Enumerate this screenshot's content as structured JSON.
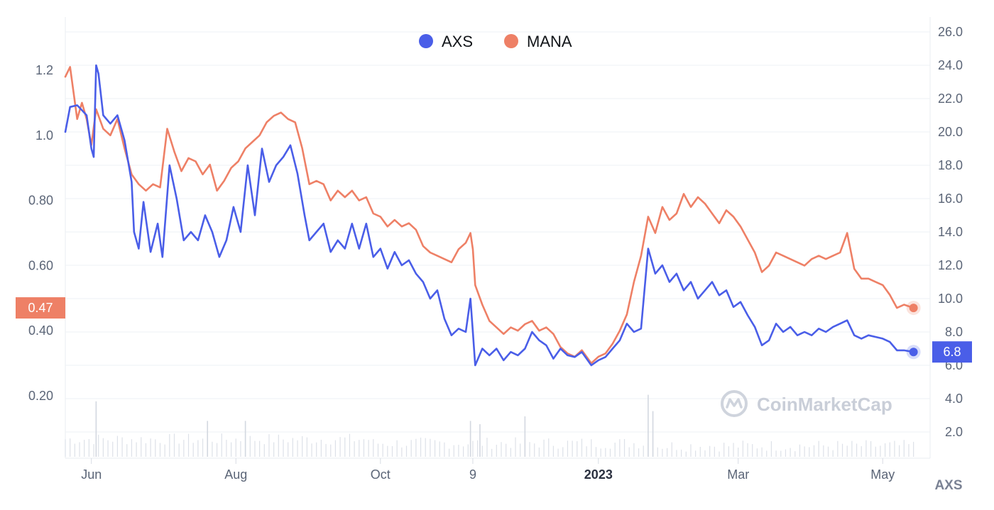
{
  "chart_data": {
    "type": "line",
    "title": "",
    "x_axis": {
      "type": "date",
      "range": [
        "2022-05-21",
        "2023-05-21"
      ],
      "ticks": [
        {
          "date": "2022-06-01",
          "label": "Jun"
        },
        {
          "date": "2022-08-01",
          "label": "Aug"
        },
        {
          "date": "2022-10-01",
          "label": "Oct"
        },
        {
          "date": "2022-11-09",
          "label": "9"
        },
        {
          "date": "2023-01-01",
          "label": "2023",
          "bold": true
        },
        {
          "date": "2023-03-01",
          "label": "Mar"
        },
        {
          "date": "2023-05-01",
          "label": "May"
        }
      ]
    },
    "y_axis_left": {
      "series": "MANA",
      "range": [
        0.1,
        1.36
      ],
      "ticks": [
        "0.20",
        "0.40",
        "0.60",
        "0.80",
        "1.0",
        "1.2"
      ]
    },
    "y_axis_right": {
      "series": "AXS",
      "unit_label": "AXS",
      "range": [
        0.0,
        26.8
      ],
      "ticks": [
        "2.0",
        "4.0",
        "6.0",
        "8.0",
        "10.0",
        "12.0",
        "14.0",
        "16.0",
        "18.0",
        "20.0",
        "22.0",
        "24.0",
        "26.0"
      ]
    },
    "grid": true,
    "legend": {
      "placement": "top-center"
    },
    "series": [
      {
        "name": "AXS",
        "axis": "right",
        "color": "#4a5ee8",
        "last_value_label": "6.8",
        "points": [
          [
            "2022-05-21",
            20.0
          ],
          [
            "2022-05-23",
            21.5
          ],
          [
            "2022-05-26",
            21.6
          ],
          [
            "2022-05-28",
            21.3
          ],
          [
            "2022-05-30",
            21.0
          ],
          [
            "2022-06-01",
            19.0
          ],
          [
            "2022-06-02",
            18.5
          ],
          [
            "2022-06-03",
            24.0
          ],
          [
            "2022-06-04",
            23.5
          ],
          [
            "2022-06-06",
            21.0
          ],
          [
            "2022-06-09",
            20.5
          ],
          [
            "2022-06-12",
            21.0
          ],
          [
            "2022-06-15",
            19.5
          ],
          [
            "2022-06-18",
            17.0
          ],
          [
            "2022-06-19",
            14.0
          ],
          [
            "2022-06-21",
            13.0
          ],
          [
            "2022-06-23",
            15.8
          ],
          [
            "2022-06-26",
            12.8
          ],
          [
            "2022-06-29",
            14.5
          ],
          [
            "2022-07-01",
            12.5
          ],
          [
            "2022-07-04",
            18.0
          ],
          [
            "2022-07-07",
            16.0
          ],
          [
            "2022-07-10",
            13.5
          ],
          [
            "2022-07-13",
            14.0
          ],
          [
            "2022-07-16",
            13.5
          ],
          [
            "2022-07-19",
            15.0
          ],
          [
            "2022-07-22",
            14.0
          ],
          [
            "2022-07-25",
            12.5
          ],
          [
            "2022-07-28",
            13.5
          ],
          [
            "2022-07-31",
            15.5
          ],
          [
            "2022-08-03",
            14.0
          ],
          [
            "2022-08-06",
            18.0
          ],
          [
            "2022-08-09",
            15.0
          ],
          [
            "2022-08-12",
            19.0
          ],
          [
            "2022-08-15",
            17.0
          ],
          [
            "2022-08-18",
            18.0
          ],
          [
            "2022-08-21",
            18.5
          ],
          [
            "2022-08-24",
            19.2
          ],
          [
            "2022-08-27",
            17.5
          ],
          [
            "2022-08-30",
            15.0
          ],
          [
            "2022-09-01",
            13.5
          ],
          [
            "2022-09-04",
            14.0
          ],
          [
            "2022-09-07",
            14.5
          ],
          [
            "2022-09-10",
            12.8
          ],
          [
            "2022-09-13",
            13.5
          ],
          [
            "2022-09-16",
            13.0
          ],
          [
            "2022-09-19",
            14.5
          ],
          [
            "2022-09-22",
            13.0
          ],
          [
            "2022-09-25",
            14.5
          ],
          [
            "2022-09-28",
            12.5
          ],
          [
            "2022-10-01",
            13.0
          ],
          [
            "2022-10-04",
            11.8
          ],
          [
            "2022-10-07",
            12.8
          ],
          [
            "2022-10-10",
            12.0
          ],
          [
            "2022-10-13",
            12.3
          ],
          [
            "2022-10-16",
            11.5
          ],
          [
            "2022-10-19",
            11.0
          ],
          [
            "2022-10-22",
            10.0
          ],
          [
            "2022-10-25",
            10.5
          ],
          [
            "2022-10-28",
            8.8
          ],
          [
            "2022-10-31",
            7.8
          ],
          [
            "2022-11-03",
            8.2
          ],
          [
            "2022-11-06",
            8.0
          ],
          [
            "2022-11-08",
            10.0
          ],
          [
            "2022-11-09",
            8.0
          ],
          [
            "2022-11-10",
            6.0
          ],
          [
            "2022-11-13",
            7.0
          ],
          [
            "2022-11-16",
            6.6
          ],
          [
            "2022-11-19",
            7.0
          ],
          [
            "2022-11-22",
            6.3
          ],
          [
            "2022-11-25",
            6.8
          ],
          [
            "2022-11-28",
            6.6
          ],
          [
            "2022-12-01",
            7.0
          ],
          [
            "2022-12-04",
            8.0
          ],
          [
            "2022-12-07",
            7.5
          ],
          [
            "2022-12-10",
            7.2
          ],
          [
            "2022-12-13",
            6.4
          ],
          [
            "2022-12-16",
            7.0
          ],
          [
            "2022-12-19",
            6.6
          ],
          [
            "2022-12-22",
            6.5
          ],
          [
            "2022-12-25",
            6.8
          ],
          [
            "2022-12-29",
            6.0
          ],
          [
            "2023-01-01",
            6.3
          ],
          [
            "2023-01-04",
            6.5
          ],
          [
            "2023-01-07",
            7.0
          ],
          [
            "2023-01-10",
            7.5
          ],
          [
            "2023-01-13",
            8.5
          ],
          [
            "2023-01-16",
            8.0
          ],
          [
            "2023-01-19",
            8.2
          ],
          [
            "2023-01-22",
            13.0
          ],
          [
            "2023-01-25",
            11.5
          ],
          [
            "2023-01-28",
            12.0
          ],
          [
            "2023-01-31",
            11.0
          ],
          [
            "2023-02-03",
            11.5
          ],
          [
            "2023-02-06",
            10.5
          ],
          [
            "2023-02-09",
            11.0
          ],
          [
            "2023-02-12",
            10.0
          ],
          [
            "2023-02-15",
            10.5
          ],
          [
            "2023-02-18",
            11.0
          ],
          [
            "2023-02-21",
            10.2
          ],
          [
            "2023-02-24",
            10.5
          ],
          [
            "2023-02-27",
            9.5
          ],
          [
            "2023-03-02",
            9.8
          ],
          [
            "2023-03-05",
            9.0
          ],
          [
            "2023-03-08",
            8.3
          ],
          [
            "2023-03-11",
            7.2
          ],
          [
            "2023-03-14",
            7.5
          ],
          [
            "2023-03-17",
            8.5
          ],
          [
            "2023-03-20",
            8.0
          ],
          [
            "2023-03-23",
            8.3
          ],
          [
            "2023-03-26",
            7.8
          ],
          [
            "2023-03-29",
            8.0
          ],
          [
            "2023-04-01",
            7.8
          ],
          [
            "2023-04-04",
            8.2
          ],
          [
            "2023-04-07",
            8.0
          ],
          [
            "2023-04-10",
            8.3
          ],
          [
            "2023-04-13",
            8.5
          ],
          [
            "2023-04-16",
            8.7
          ],
          [
            "2023-04-19",
            7.8
          ],
          [
            "2023-04-22",
            7.6
          ],
          [
            "2023-04-25",
            7.8
          ],
          [
            "2023-04-28",
            7.7
          ],
          [
            "2023-05-01",
            7.6
          ],
          [
            "2023-05-04",
            7.4
          ],
          [
            "2023-05-07",
            6.9
          ],
          [
            "2023-05-10",
            6.9
          ],
          [
            "2023-05-14",
            6.8
          ]
        ]
      },
      {
        "name": "MANA",
        "axis": "left",
        "color": "#ee8066",
        "last_value_label": "0.47",
        "points": [
          [
            "2022-05-21",
            1.18
          ],
          [
            "2022-05-23",
            1.21
          ],
          [
            "2022-05-26",
            1.05
          ],
          [
            "2022-05-28",
            1.1
          ],
          [
            "2022-05-30",
            1.05
          ],
          [
            "2022-06-01",
            0.97
          ],
          [
            "2022-06-03",
            1.08
          ],
          [
            "2022-06-06",
            1.02
          ],
          [
            "2022-06-09",
            1.0
          ],
          [
            "2022-06-12",
            1.05
          ],
          [
            "2022-06-15",
            0.96
          ],
          [
            "2022-06-18",
            0.88
          ],
          [
            "2022-06-21",
            0.85
          ],
          [
            "2022-06-24",
            0.83
          ],
          [
            "2022-06-27",
            0.85
          ],
          [
            "2022-06-30",
            0.84
          ],
          [
            "2022-07-03",
            1.02
          ],
          [
            "2022-07-06",
            0.95
          ],
          [
            "2022-07-09",
            0.89
          ],
          [
            "2022-07-12",
            0.93
          ],
          [
            "2022-07-15",
            0.92
          ],
          [
            "2022-07-18",
            0.88
          ],
          [
            "2022-07-21",
            0.91
          ],
          [
            "2022-07-24",
            0.83
          ],
          [
            "2022-07-27",
            0.86
          ],
          [
            "2022-07-30",
            0.9
          ],
          [
            "2022-08-02",
            0.92
          ],
          [
            "2022-08-05",
            0.96
          ],
          [
            "2022-08-08",
            0.98
          ],
          [
            "2022-08-11",
            1.0
          ],
          [
            "2022-08-14",
            1.04
          ],
          [
            "2022-08-17",
            1.06
          ],
          [
            "2022-08-20",
            1.07
          ],
          [
            "2022-08-23",
            1.05
          ],
          [
            "2022-08-26",
            1.04
          ],
          [
            "2022-08-29",
            0.96
          ],
          [
            "2022-09-01",
            0.85
          ],
          [
            "2022-09-04",
            0.86
          ],
          [
            "2022-09-07",
            0.85
          ],
          [
            "2022-09-10",
            0.8
          ],
          [
            "2022-09-13",
            0.83
          ],
          [
            "2022-09-16",
            0.81
          ],
          [
            "2022-09-19",
            0.83
          ],
          [
            "2022-09-22",
            0.8
          ],
          [
            "2022-09-25",
            0.81
          ],
          [
            "2022-09-28",
            0.76
          ],
          [
            "2022-10-01",
            0.75
          ],
          [
            "2022-10-04",
            0.72
          ],
          [
            "2022-10-07",
            0.74
          ],
          [
            "2022-10-10",
            0.72
          ],
          [
            "2022-10-13",
            0.73
          ],
          [
            "2022-10-16",
            0.71
          ],
          [
            "2022-10-19",
            0.66
          ],
          [
            "2022-10-22",
            0.64
          ],
          [
            "2022-10-25",
            0.63
          ],
          [
            "2022-10-28",
            0.62
          ],
          [
            "2022-10-31",
            0.61
          ],
          [
            "2022-11-03",
            0.65
          ],
          [
            "2022-11-06",
            0.67
          ],
          [
            "2022-11-08",
            0.7
          ],
          [
            "2022-11-09",
            0.65
          ],
          [
            "2022-11-10",
            0.54
          ],
          [
            "2022-11-13",
            0.48
          ],
          [
            "2022-11-16",
            0.43
          ],
          [
            "2022-11-19",
            0.41
          ],
          [
            "2022-11-22",
            0.39
          ],
          [
            "2022-11-25",
            0.41
          ],
          [
            "2022-11-28",
            0.4
          ],
          [
            "2022-12-01",
            0.42
          ],
          [
            "2022-12-04",
            0.43
          ],
          [
            "2022-12-07",
            0.4
          ],
          [
            "2022-12-10",
            0.41
          ],
          [
            "2022-12-13",
            0.39
          ],
          [
            "2022-12-16",
            0.35
          ],
          [
            "2022-12-19",
            0.33
          ],
          [
            "2022-12-22",
            0.32
          ],
          [
            "2022-12-25",
            0.34
          ],
          [
            "2022-12-29",
            0.3
          ],
          [
            "2023-01-01",
            0.32
          ],
          [
            "2023-01-04",
            0.33
          ],
          [
            "2023-01-07",
            0.36
          ],
          [
            "2023-01-10",
            0.4
          ],
          [
            "2023-01-13",
            0.45
          ],
          [
            "2023-01-16",
            0.55
          ],
          [
            "2023-01-19",
            0.63
          ],
          [
            "2023-01-22",
            0.75
          ],
          [
            "2023-01-25",
            0.7
          ],
          [
            "2023-01-28",
            0.78
          ],
          [
            "2023-01-31",
            0.74
          ],
          [
            "2023-02-03",
            0.76
          ],
          [
            "2023-02-06",
            0.82
          ],
          [
            "2023-02-09",
            0.78
          ],
          [
            "2023-02-12",
            0.81
          ],
          [
            "2023-02-15",
            0.79
          ],
          [
            "2023-02-18",
            0.76
          ],
          [
            "2023-02-21",
            0.73
          ],
          [
            "2023-02-24",
            0.77
          ],
          [
            "2023-02-27",
            0.75
          ],
          [
            "2023-03-02",
            0.72
          ],
          [
            "2023-03-05",
            0.68
          ],
          [
            "2023-03-08",
            0.64
          ],
          [
            "2023-03-11",
            0.58
          ],
          [
            "2023-03-14",
            0.6
          ],
          [
            "2023-03-17",
            0.64
          ],
          [
            "2023-03-20",
            0.63
          ],
          [
            "2023-03-23",
            0.62
          ],
          [
            "2023-03-26",
            0.61
          ],
          [
            "2023-03-29",
            0.6
          ],
          [
            "2023-04-01",
            0.62
          ],
          [
            "2023-04-04",
            0.63
          ],
          [
            "2023-04-07",
            0.62
          ],
          [
            "2023-04-10",
            0.63
          ],
          [
            "2023-04-13",
            0.64
          ],
          [
            "2023-04-16",
            0.7
          ],
          [
            "2023-04-19",
            0.59
          ],
          [
            "2023-04-22",
            0.56
          ],
          [
            "2023-04-25",
            0.56
          ],
          [
            "2023-04-28",
            0.55
          ],
          [
            "2023-05-01",
            0.54
          ],
          [
            "2023-05-04",
            0.51
          ],
          [
            "2023-05-07",
            0.47
          ],
          [
            "2023-05-10",
            0.48
          ],
          [
            "2023-05-14",
            0.47
          ]
        ]
      }
    ],
    "volume": {
      "color": "#dde1e8",
      "note_values_relative": true,
      "bars": [
        [
          "2022-06-03",
          0.85
        ],
        [
          "2022-07-20",
          0.55
        ],
        [
          "2022-08-05",
          0.55
        ],
        [
          "2022-11-08",
          0.55
        ],
        [
          "2022-11-12",
          0.5
        ],
        [
          "2022-12-01",
          0.62
        ],
        [
          "2023-01-22",
          0.95
        ],
        [
          "2023-01-24",
          0.7
        ]
      ]
    }
  },
  "legend": {
    "items": [
      {
        "label": "AXS",
        "color": "#4a5ee8"
      },
      {
        "label": "MANA",
        "color": "#ee8066"
      }
    ]
  },
  "watermark": {
    "text": "CoinMarketCap",
    "icon": "coinmarketcap-logo-icon"
  }
}
